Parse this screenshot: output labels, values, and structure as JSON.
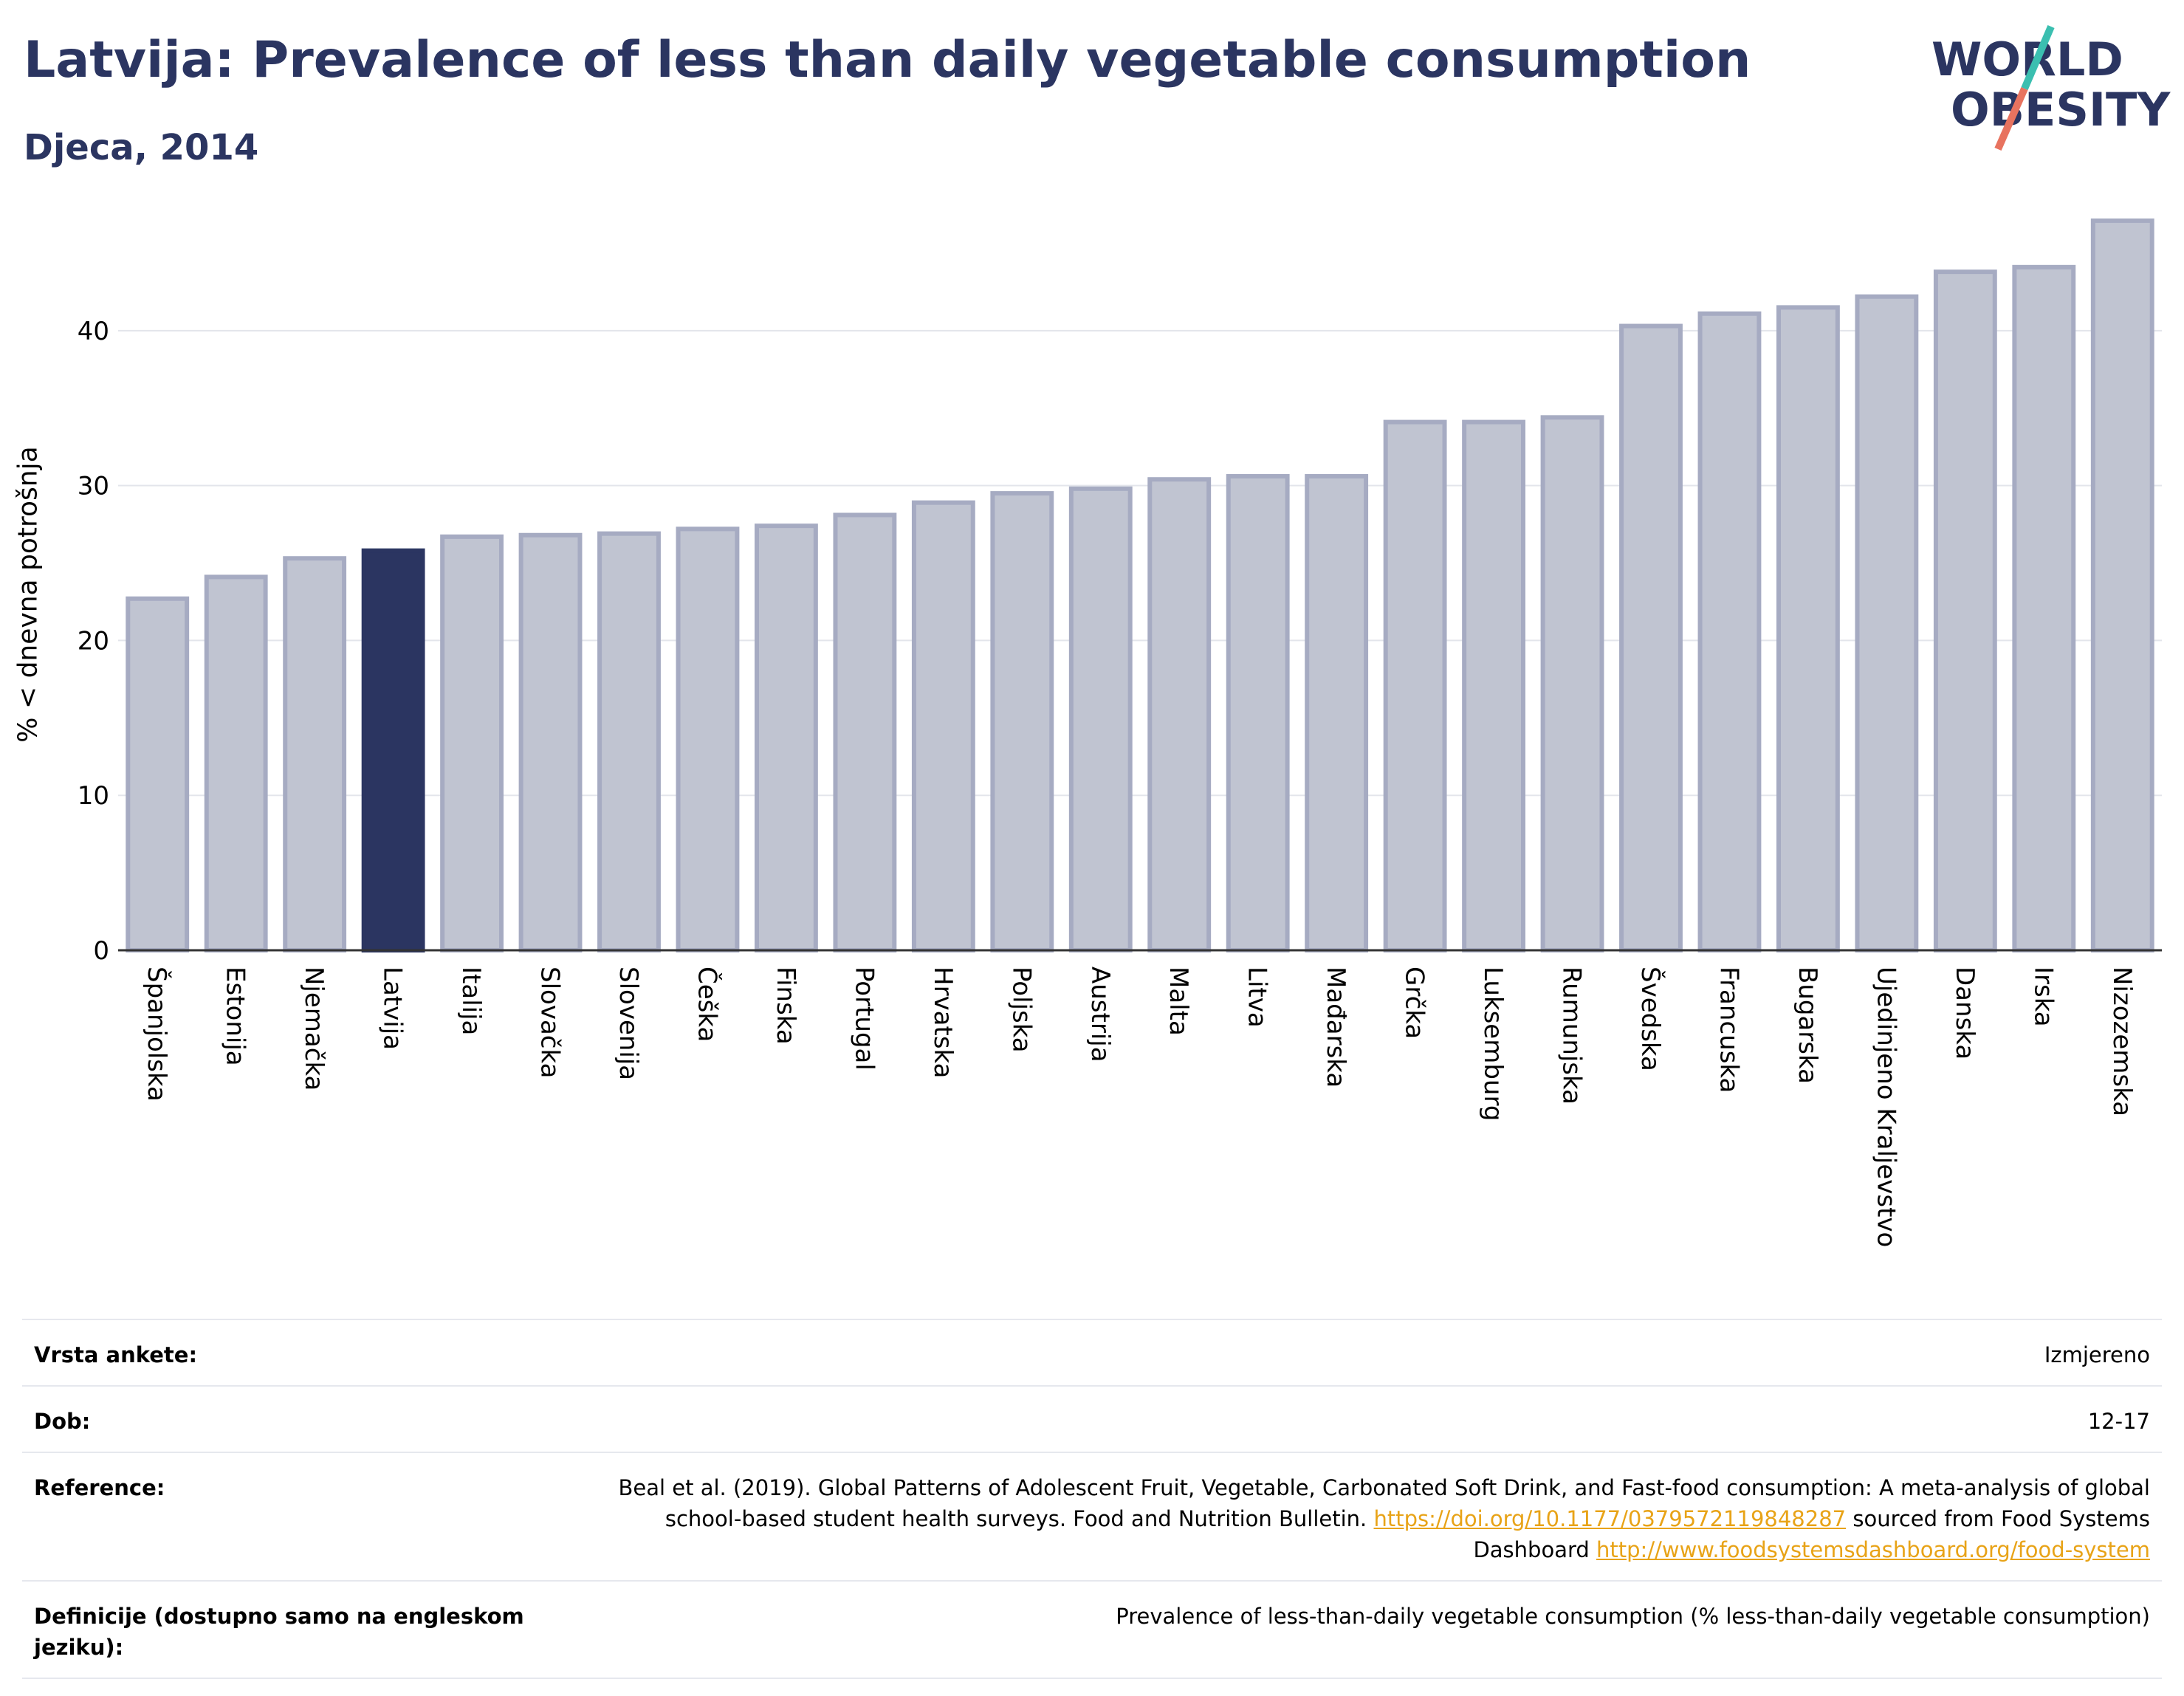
{
  "header": {
    "title": "Latvija: Prevalence of less than daily vegetable consumption",
    "subtitle": "Djeca, 2014",
    "logo_text_line1": "WORLD",
    "logo_text_line2": "OBESITY"
  },
  "colors": {
    "highlight_bar": "#2b3561",
    "bar_fill": "#c0c4d1",
    "bar_border": "#a6abc2",
    "title": "#2b3561",
    "link": "#e8a317",
    "logo_slash_top": "#3bbfb0",
    "logo_slash_bottom": "#e8735f"
  },
  "chart_data": {
    "type": "bar",
    "title": "Latvija: Prevalence of less than daily vegetable consumption",
    "subtitle": "Djeca, 2014",
    "xlabel": "",
    "ylabel": "% < dnevna potrošnja",
    "ylim": [
      0,
      48
    ],
    "yticks": [
      0,
      10,
      20,
      30,
      40
    ],
    "grid": true,
    "highlight": "Latvija",
    "categories": [
      "Španjolska",
      "Estonija",
      "Njemačka",
      "Latvija",
      "Italija",
      "Slovačka",
      "Slovenija",
      "Češka",
      "Finska",
      "Portugal",
      "Hrvatska",
      "Poljska",
      "Austrija",
      "Malta",
      "Litva",
      "Mađarska",
      "Grčka",
      "Luksemburg",
      "Rumunjska",
      "Švedska",
      "Francuska",
      "Bugarska",
      "Ujedinjeno Kraljevstvo",
      "Danska",
      "Irska",
      "Nizozemska"
    ],
    "values": [
      22.7,
      24.1,
      25.3,
      25.8,
      26.7,
      26.8,
      26.9,
      27.2,
      27.4,
      28.1,
      28.9,
      29.5,
      29.8,
      30.4,
      30.6,
      30.6,
      34.1,
      34.1,
      34.4,
      40.3,
      41.1,
      41.5,
      42.2,
      43.8,
      44.1,
      47.1
    ]
  },
  "meta": {
    "rows": [
      {
        "key": "Vrsta ankete:",
        "value": "Izmjereno"
      },
      {
        "key": "Dob:",
        "value": "12-17"
      },
      {
        "key": "Reference:",
        "value_before": "Beal et al. (2019). Global Patterns of Adolescent Fruit, Vegetable, Carbonated Soft Drink, and Fast-food consumption: A meta-analysis of global school-based student health surveys. Food and Nutrition Bulletin. ",
        "link1": "https://doi.org/10.1177/0379572119848287",
        "value_middle": " sourced from Food Systems Dashboard ",
        "link2": "http://www.foodsystemsdashboard.org/food-system"
      },
      {
        "key": "Definicije (dostupno samo na engleskom jeziku):",
        "value": "Prevalence of less-than-daily vegetable consumption (% less-than-daily vegetable consumption)"
      }
    ]
  }
}
